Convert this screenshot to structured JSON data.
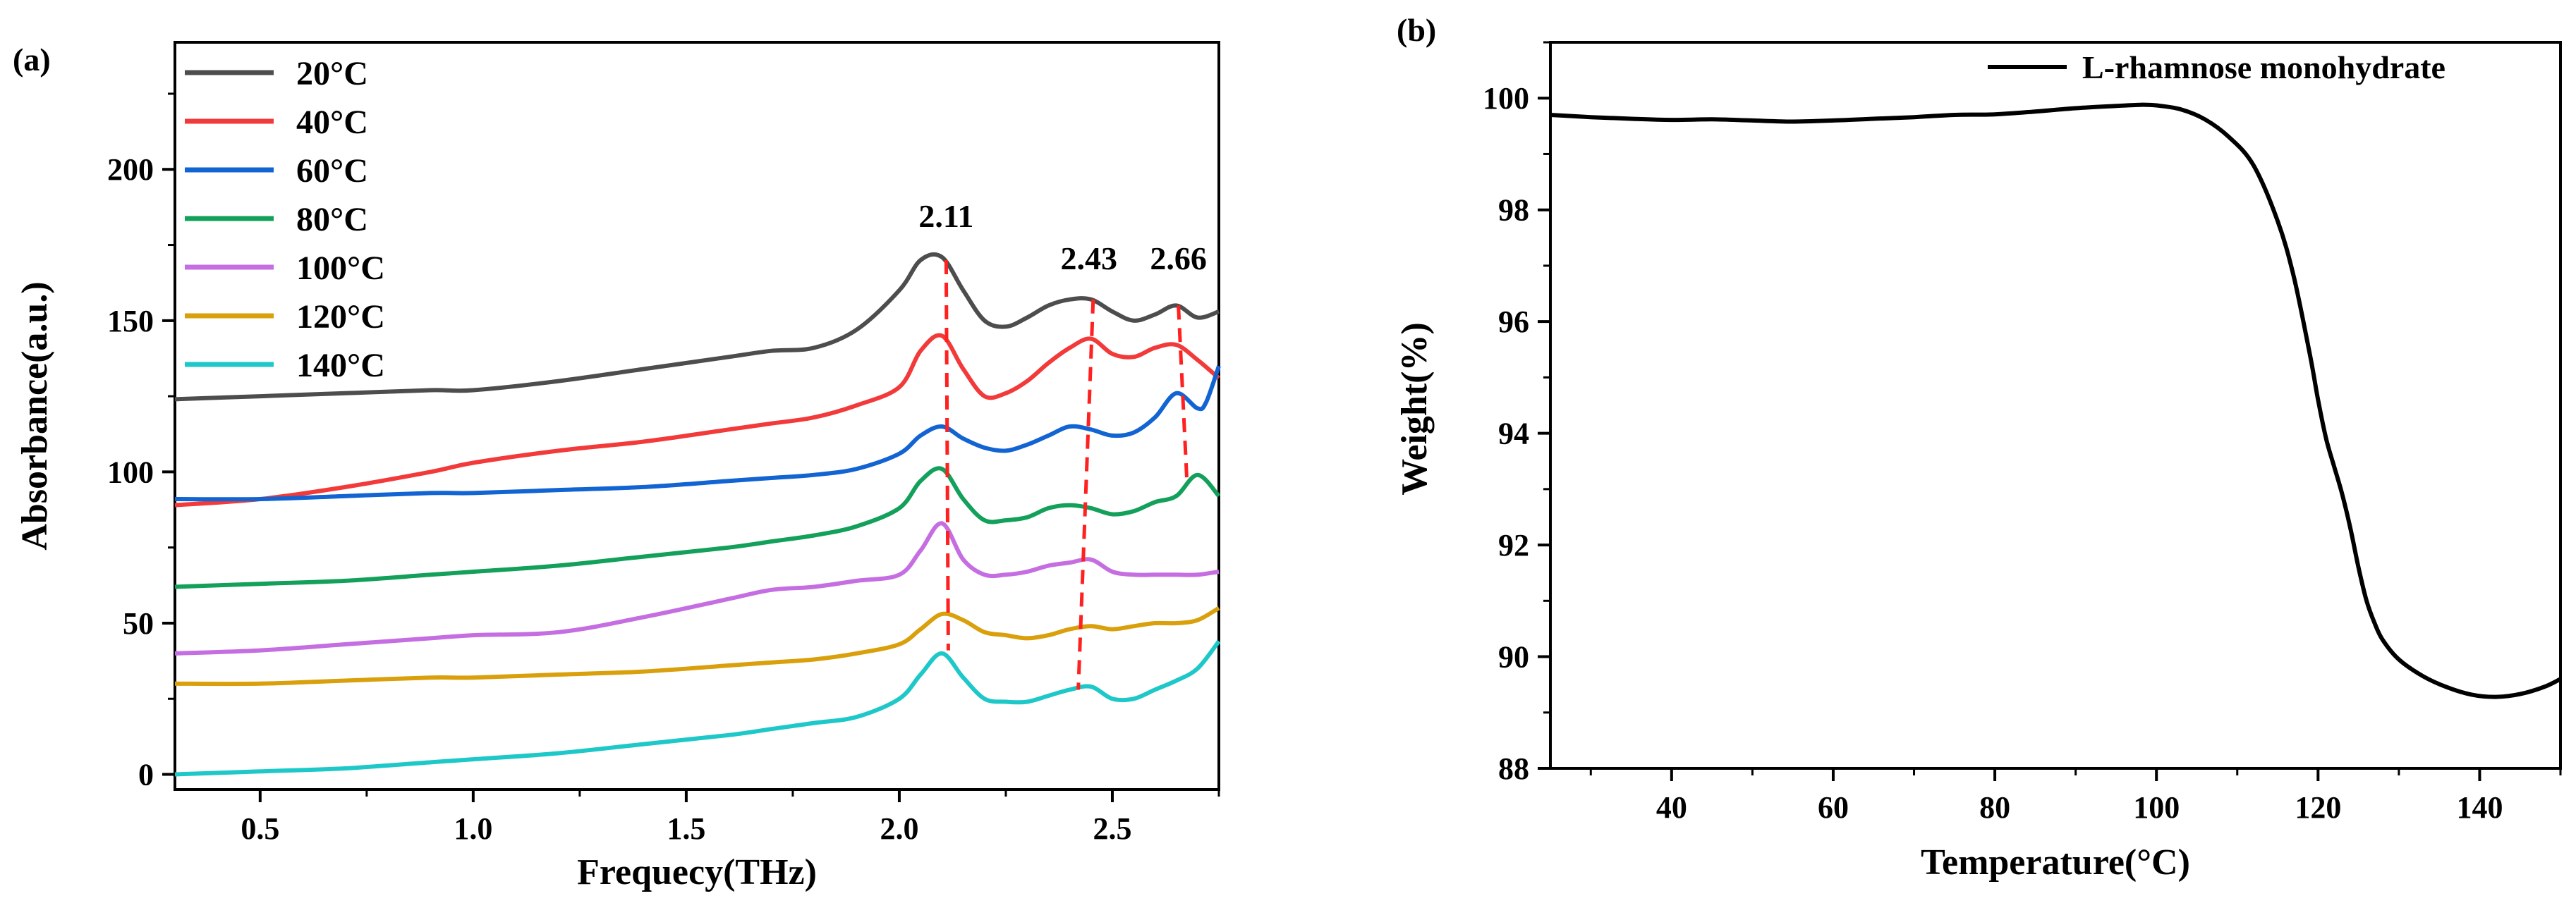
{
  "figure": {
    "panels": [
      "(a)",
      "(b)"
    ]
  },
  "chart_data": [
    {
      "panel_label": "(a)",
      "type": "line",
      "title": "",
      "xlabel": "Frequecy(THz)",
      "ylabel": "Absorbance(a.u.)",
      "xlim": [
        0.3,
        2.75
      ],
      "ylim": [
        -5,
        242
      ],
      "xticks": [
        0.5,
        1.0,
        1.5,
        2.0,
        2.5
      ],
      "xtick_labels": [
        "0.5",
        "1.0",
        "1.5",
        "2.0",
        "2.5"
      ],
      "yticks": [
        0,
        50,
        100,
        150,
        200
      ],
      "ytick_labels": [
        "0",
        "50",
        "100",
        "150",
        "200"
      ],
      "grid": false,
      "legend_position": "top-left",
      "series": [
        {
          "name": "20°C",
          "color": "#4d4d4d",
          "x": [
            0.3,
            0.5,
            0.7,
            0.9,
            1.0,
            1.2,
            1.4,
            1.6,
            1.7,
            1.8,
            1.9,
            2.0,
            2.05,
            2.1,
            2.15,
            2.2,
            2.25,
            2.3,
            2.35,
            2.4,
            2.45,
            2.5,
            2.55,
            2.6,
            2.65,
            2.7,
            2.75
          ],
          "y": [
            124,
            125,
            126,
            127,
            127,
            130,
            134,
            138,
            140,
            141,
            147,
            160,
            170,
            171,
            160,
            150,
            148,
            151,
            155,
            157,
            157,
            153,
            150,
            152,
            155,
            151,
            153
          ]
        },
        {
          "name": "40°C",
          "color": "#f23a3a",
          "x": [
            0.3,
            0.5,
            0.7,
            0.9,
            1.0,
            1.2,
            1.4,
            1.6,
            1.7,
            1.8,
            1.9,
            2.0,
            2.05,
            2.1,
            2.15,
            2.2,
            2.25,
            2.3,
            2.35,
            2.4,
            2.45,
            2.5,
            2.55,
            2.6,
            2.65,
            2.7,
            2.75
          ],
          "y": [
            89,
            91,
            95,
            100,
            103,
            107,
            110,
            114,
            116,
            118,
            122,
            128,
            140,
            145,
            134,
            125,
            126,
            130,
            136,
            141,
            144,
            139,
            138,
            141,
            142,
            137,
            131
          ]
        },
        {
          "name": "60°C",
          "color": "#1264d2",
          "x": [
            0.3,
            0.5,
            0.7,
            0.9,
            1.0,
            1.2,
            1.4,
            1.6,
            1.7,
            1.8,
            1.9,
            2.0,
            2.05,
            2.1,
            2.15,
            2.2,
            2.25,
            2.3,
            2.35,
            2.4,
            2.45,
            2.5,
            2.55,
            2.6,
            2.65,
            2.7,
            2.72,
            2.75
          ],
          "y": [
            91,
            91,
            92,
            93,
            93,
            94,
            95,
            97,
            98,
            99,
            101,
            106,
            112,
            115,
            111,
            108,
            107,
            109,
            112,
            115,
            114,
            112,
            113,
            118,
            126,
            121,
            123,
            135
          ]
        },
        {
          "name": "80°C",
          "color": "#12a05a",
          "x": [
            0.3,
            0.5,
            0.7,
            0.9,
            1.0,
            1.2,
            1.4,
            1.6,
            1.7,
            1.8,
            1.9,
            2.0,
            2.05,
            2.1,
            2.15,
            2.2,
            2.25,
            2.3,
            2.35,
            2.4,
            2.45,
            2.5,
            2.55,
            2.6,
            2.65,
            2.7,
            2.75
          ],
          "y": [
            62,
            63,
            64,
            66,
            67,
            69,
            72,
            75,
            77,
            79,
            82,
            88,
            97,
            101,
            91,
            84,
            84,
            85,
            88,
            89,
            88,
            86,
            87,
            90,
            92,
            99,
            92
          ]
        },
        {
          "name": "100°C",
          "color": "#c56ee2",
          "x": [
            0.3,
            0.5,
            0.7,
            0.9,
            1.0,
            1.2,
            1.4,
            1.6,
            1.7,
            1.8,
            1.9,
            2.0,
            2.05,
            2.1,
            2.15,
            2.2,
            2.25,
            2.3,
            2.35,
            2.4,
            2.45,
            2.5,
            2.55,
            2.6,
            2.65,
            2.7,
            2.75
          ],
          "y": [
            40,
            41,
            43,
            45,
            46,
            47,
            52,
            58,
            61,
            62,
            64,
            66,
            74,
            83,
            71,
            66,
            66,
            67,
            69,
            70,
            71,
            67,
            66,
            66,
            66,
            66,
            67
          ]
        },
        {
          "name": "120°C",
          "color": "#d9a00c",
          "x": [
            0.3,
            0.5,
            0.7,
            0.9,
            1.0,
            1.2,
            1.4,
            1.6,
            1.7,
            1.8,
            1.9,
            2.0,
            2.05,
            2.1,
            2.15,
            2.2,
            2.25,
            2.3,
            2.35,
            2.4,
            2.45,
            2.5,
            2.55,
            2.6,
            2.65,
            2.7,
            2.75
          ],
          "y": [
            30,
            30,
            31,
            32,
            32,
            33,
            34,
            36,
            37,
            38,
            40,
            43,
            48,
            53,
            51,
            47,
            46,
            45,
            46,
            48,
            49,
            48,
            49,
            50,
            50,
            51,
            55
          ]
        },
        {
          "name": "140°C",
          "color": "#1ec8c8",
          "x": [
            0.3,
            0.5,
            0.7,
            0.9,
            1.0,
            1.2,
            1.4,
            1.6,
            1.7,
            1.8,
            1.9,
            2.0,
            2.05,
            2.1,
            2.15,
            2.2,
            2.25,
            2.3,
            2.35,
            2.4,
            2.45,
            2.5,
            2.55,
            2.6,
            2.65,
            2.7,
            2.75
          ],
          "y": [
            0,
            1,
            2,
            4,
            5,
            7,
            10,
            13,
            15,
            17,
            19,
            25,
            33,
            40,
            32,
            25,
            24,
            24,
            26,
            28,
            29,
            25,
            25,
            28,
            31,
            35,
            44
          ]
        }
      ],
      "annotations": [
        {
          "label": "2.11",
          "x": 2.11,
          "y_text": 181,
          "guide": [
            [
              2.11,
              170
            ],
            [
              2.115,
              41
            ]
          ]
        },
        {
          "label": "2.43",
          "x": 2.445,
          "y_text": 167,
          "guide": [
            [
              2.455,
              157
            ],
            [
              2.42,
              28
            ]
          ]
        },
        {
          "label": "2.66",
          "x": 2.655,
          "y_text": 167,
          "guide": [
            [
              2.655,
              155
            ],
            [
              2.675,
              97
            ]
          ]
        }
      ]
    },
    {
      "panel_label": "(b)",
      "type": "line",
      "title": "",
      "xlabel": "Temperature(°C)",
      "ylabel": "Weight(%)",
      "xlim": [
        25,
        150
      ],
      "ylim": [
        88,
        101
      ],
      "xticks": [
        40,
        60,
        80,
        100,
        120,
        140
      ],
      "xtick_labels": [
        "40",
        "60",
        "80",
        "100",
        "120",
        "140"
      ],
      "yticks": [
        88,
        90,
        92,
        94,
        96,
        98,
        100
      ],
      "ytick_labels": [
        "88",
        "90",
        "92",
        "94",
        "96",
        "98",
        "100"
      ],
      "grid": false,
      "legend_position": "top-right",
      "series": [
        {
          "name": "L-rhamnose monohydrate",
          "color": "#000000",
          "x": [
            25,
            30,
            35,
            40,
            45,
            50,
            55,
            60,
            65,
            70,
            75,
            80,
            85,
            90,
            95,
            98,
            100,
            103,
            106,
            109,
            112,
            115,
            117,
            119,
            120,
            121,
            122,
            123,
            124,
            125,
            126,
            127,
            128,
            130,
            133,
            136,
            139,
            142,
            145,
            148,
            150
          ],
          "y": [
            99.7,
            99.66,
            99.63,
            99.61,
            99.62,
            99.6,
            99.58,
            99.6,
            99.63,
            99.66,
            99.7,
            99.71,
            99.76,
            99.82,
            99.86,
            99.88,
            99.87,
            99.8,
            99.62,
            99.3,
            98.8,
            97.8,
            96.8,
            95.4,
            94.6,
            93.9,
            93.4,
            92.9,
            92.3,
            91.6,
            91.0,
            90.6,
            90.3,
            89.95,
            89.65,
            89.45,
            89.32,
            89.28,
            89.33,
            89.46,
            89.6
          ]
        }
      ]
    }
  ]
}
